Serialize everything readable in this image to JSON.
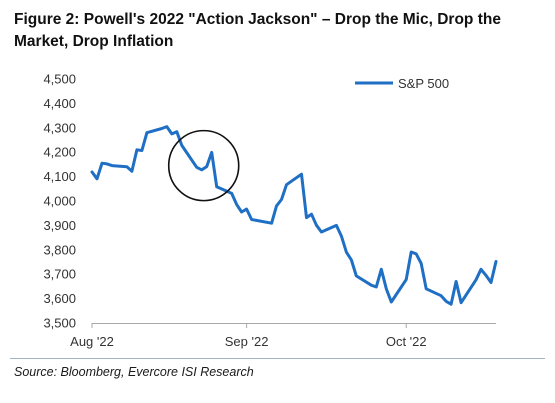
{
  "title": "Figure 2: Powell's 2022 \"Action Jackson\" – Drop the Mic, Drop the Market, Drop Inflation",
  "source": "Source: Bloomberg, Evercore ISI Research",
  "colors": {
    "series": "#1f6fc4",
    "axis": "#a8a8a8",
    "annotation": "#111111"
  },
  "chart_data": {
    "type": "line",
    "title": "",
    "xlabel": "",
    "ylabel": "",
    "ylim": [
      3500,
      4500
    ],
    "yticks": [
      3500,
      3600,
      3700,
      3800,
      3900,
      4000,
      4100,
      4200,
      4300,
      4400,
      4500
    ],
    "ytick_labels": [
      "3,500",
      "3,600",
      "3,700",
      "3,800",
      "3,900",
      "4,000",
      "4,100",
      "4,200",
      "4,300",
      "4,400",
      "4,500"
    ],
    "xlim": [
      "2022-08-01",
      "2022-10-21"
    ],
    "xticks": [
      "2022-08-01",
      "2022-09-01",
      "2022-10-03"
    ],
    "xtick_labels": [
      "Aug '22",
      "Sep '22",
      "Oct '22"
    ],
    "grid": false,
    "legend_position": "top-right",
    "annotation": "circle around the Jackson Hole speech on 2022-08-26",
    "series": [
      {
        "name": "S&P 500",
        "x": [
          "2022-08-01",
          "2022-08-02",
          "2022-08-03",
          "2022-08-04",
          "2022-08-05",
          "2022-08-08",
          "2022-08-09",
          "2022-08-10",
          "2022-08-11",
          "2022-08-12",
          "2022-08-15",
          "2022-08-16",
          "2022-08-17",
          "2022-08-18",
          "2022-08-19",
          "2022-08-22",
          "2022-08-23",
          "2022-08-24",
          "2022-08-25",
          "2022-08-26",
          "2022-08-29",
          "2022-08-30",
          "2022-08-31",
          "2022-09-01",
          "2022-09-02",
          "2022-09-06",
          "2022-09-07",
          "2022-09-08",
          "2022-09-09",
          "2022-09-12",
          "2022-09-13",
          "2022-09-14",
          "2022-09-15",
          "2022-09-16",
          "2022-09-19",
          "2022-09-20",
          "2022-09-21",
          "2022-09-22",
          "2022-09-23",
          "2022-09-26",
          "2022-09-27",
          "2022-09-28",
          "2022-09-29",
          "2022-09-30",
          "2022-10-03",
          "2022-10-04",
          "2022-10-05",
          "2022-10-06",
          "2022-10-07",
          "2022-10-10",
          "2022-10-11",
          "2022-10-12",
          "2022-10-13",
          "2022-10-14",
          "2022-10-17",
          "2022-10-18",
          "2022-10-19",
          "2022-10-20",
          "2022-10-21"
        ],
        "values": [
          4119,
          4091,
          4155,
          4152,
          4145,
          4140,
          4122,
          4210,
          4207,
          4280,
          4297,
          4305,
          4275,
          4284,
          4228,
          4138,
          4128,
          4141,
          4199,
          4058,
          4031,
          3986,
          3955,
          3967,
          3924,
          3909,
          3980,
          4006,
          4067,
          4110,
          3932,
          3946,
          3901,
          3873,
          3900,
          3856,
          3790,
          3758,
          3693,
          3655,
          3648,
          3720,
          3640,
          3586,
          3678,
          3791,
          3783,
          3744,
          3640,
          3612,
          3589,
          3577,
          3670,
          3583,
          3677,
          3720,
          3695,
          3666,
          3752
        ]
      }
    ]
  }
}
